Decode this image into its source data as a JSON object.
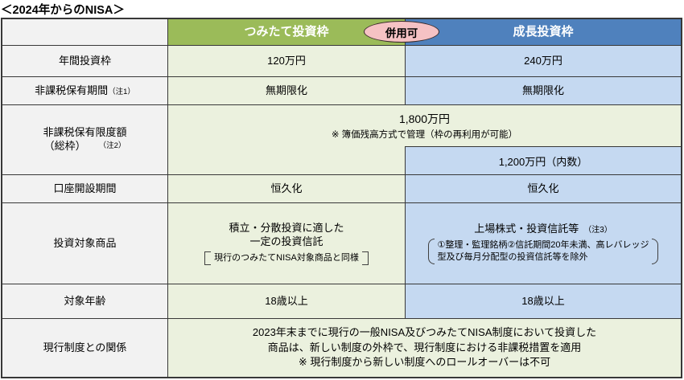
{
  "title": "＜2024年からのNISA＞",
  "header": {
    "tsumitate": "つみたて投資枠",
    "growth": "成長投資枠",
    "badge": "併用可"
  },
  "colors": {
    "header_green": "#9bbb59",
    "header_blue": "#4f81bd",
    "cell_light_green": "#ebf1de",
    "cell_light_blue": "#c5d9f1",
    "label_gray": "#f2f2f2",
    "badge_pink": "#f6c2c4",
    "grid_line": "#383838"
  },
  "rows": {
    "annual": {
      "label": "年間投資枠",
      "tsumitate": "120万円",
      "growth": "240万円"
    },
    "period": {
      "label": "非課税保有期間",
      "note": "（注1）",
      "tsumitate": "無期限化",
      "growth": "無期限化"
    },
    "limit": {
      "label_line1": "非課税保有限度額",
      "label_line2": "（総枠）",
      "note": "（注2）",
      "merged_value": "1,800万円",
      "merged_note": "※ 簿価残高方式で管理（枠の再利用が可能）",
      "growth_sub": "1,200万円（内数）"
    },
    "account": {
      "label": "口座開設期間",
      "tsumitate": "恒久化",
      "growth": "恒久化"
    },
    "products": {
      "label": "投資対象商品",
      "tsumitate_line1": "積立・分散投資に適した",
      "tsumitate_line2": "一定の投資信託",
      "tsumitate_bracket": "現行のつみたてNISA対象商品と同様",
      "growth_title": "上場株式・投資信託等",
      "growth_note": "（注3）",
      "growth_bracket_line1": "①整理・監理銘柄②信託期間20年未満、高レバレッジ",
      "growth_bracket_line2": "型及び毎月分配型の投資信託等を除外"
    },
    "age": {
      "label": "対象年齢",
      "tsumitate": "18歳以上",
      "growth": "18歳以上"
    },
    "relation": {
      "label": "現行制度との関係",
      "line1": "2023年末までに現行の一般NISA及びつみたてNISA制度において投資した",
      "line2": "商品は、新しい制度の外枠で、現行制度における非課税措置を適用",
      "line3": "※ 現行制度から新しい制度へのロールオーバーは不可"
    }
  }
}
